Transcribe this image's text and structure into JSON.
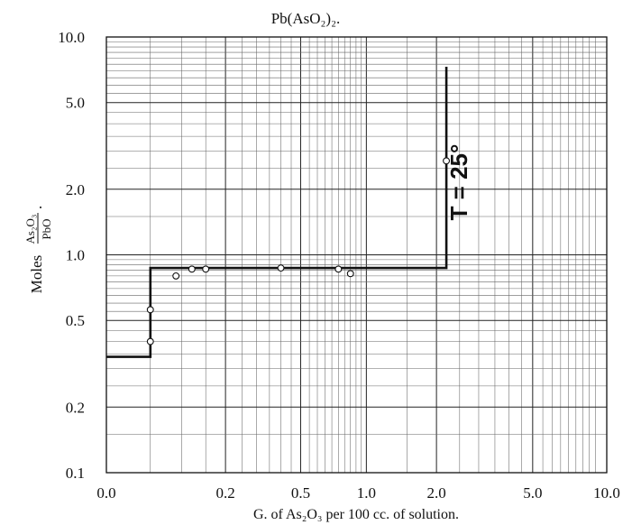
{
  "chart_data": {
    "type": "line",
    "title": "Pb(AsO₂)₂.",
    "xlabel": "G. of As₂O₃ per 100 cc. of solution.",
    "ylabel_prefix": "Moles",
    "ylabel_numerator": "As₂O₃",
    "ylabel_denominator": "PbO",
    "ylabel_suffix": ".",
    "x_scale": "log(x+0.1)",
    "y_scale": "log",
    "xlim": [
      0.0,
      10.0
    ],
    "ylim": [
      0.1,
      10.0
    ],
    "x_ticks": [
      0.0,
      0.2,
      0.5,
      1.0,
      2.0,
      5.0,
      10.0
    ],
    "x_tick_labels": [
      "0.0",
      "0.2",
      "0.5",
      "1.0",
      "2.0",
      "5.0",
      "10.0"
    ],
    "y_ticks": [
      0.1,
      0.2,
      0.5,
      1.0,
      2.0,
      5.0,
      10.0
    ],
    "y_tick_labels": [
      "0.1",
      "0.2",
      "0.5",
      "1.0",
      "2.0",
      "5.0",
      "10.0"
    ],
    "grid": true,
    "annotation": "T = 25°",
    "series": [
      {
        "kind": "step-line",
        "x": [
          0.0,
          0.05,
          0.05,
          2.2,
          2.2
        ],
        "y": [
          0.34,
          0.34,
          0.87,
          0.87,
          7.3
        ]
      },
      {
        "kind": "points",
        "x": [
          0.05,
          0.05,
          0.09,
          0.12,
          0.15,
          0.4,
          0.75,
          0.85,
          2.2
        ],
        "y": [
          0.4,
          0.56,
          0.8,
          0.86,
          0.86,
          0.87,
          0.86,
          0.82,
          2.7
        ]
      }
    ]
  }
}
